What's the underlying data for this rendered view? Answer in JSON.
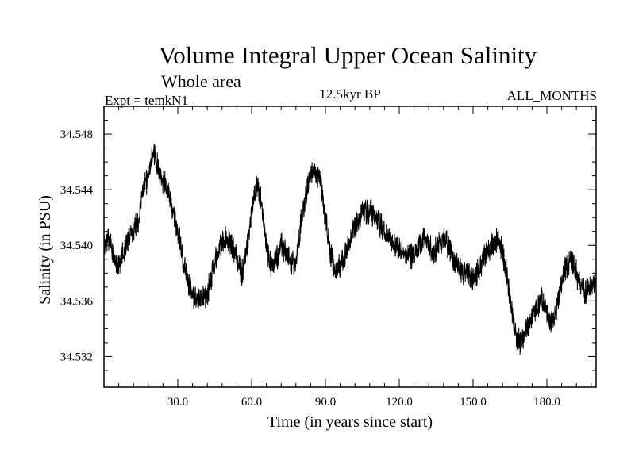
{
  "chart_data": {
    "type": "line",
    "title": "Volume Integral Upper Ocean Salinity",
    "subtitle": "Whole area",
    "experiment": "Expt = temkN1",
    "period": "12.5kyr BP",
    "months": "ALL_MONTHS",
    "xlabel": "Time (in years since start)",
    "ylabel": "Salinity (in PSU)",
    "xlim": [
      0,
      200
    ],
    "ylim": [
      34.5298,
      34.55
    ],
    "xticks": [
      30,
      60,
      90,
      120,
      150,
      180
    ],
    "xtick_labels": [
      "30.0",
      "60.0",
      "90.0",
      "120.0",
      "150.0",
      "180.0"
    ],
    "yticks": [
      34.532,
      34.536,
      34.54,
      34.544,
      34.548
    ],
    "ytick_labels": [
      "34.532",
      "34.536",
      "34.540",
      "34.544",
      "34.548"
    ],
    "grid": false,
    "series": [
      {
        "name": "salinity",
        "noise_amplitude": 0.0011,
        "x": [
          0,
          2,
          4,
          6,
          8,
          10,
          12,
          14,
          16,
          18,
          20,
          22,
          24,
          26,
          28,
          30,
          32,
          34,
          36,
          38,
          40,
          42,
          44,
          46,
          48,
          50,
          52,
          54,
          56,
          58,
          60,
          62,
          64,
          66,
          68,
          70,
          72,
          74,
          76,
          78,
          80,
          82,
          84,
          86,
          88,
          90,
          92,
          94,
          96,
          98,
          100,
          102,
          104,
          106,
          108,
          110,
          112,
          114,
          116,
          118,
          120,
          122,
          124,
          126,
          128,
          130,
          132,
          134,
          136,
          138,
          140,
          142,
          144,
          146,
          148,
          150,
          152,
          154,
          156,
          158,
          160,
          162,
          164,
          166,
          168,
          170,
          172,
          174,
          176,
          178,
          180,
          182,
          184,
          186,
          188,
          190,
          192,
          194,
          196,
          198,
          200
        ],
        "values": [
          34.54,
          34.5405,
          34.539,
          34.5385,
          34.5395,
          34.5405,
          34.541,
          34.542,
          34.544,
          34.545,
          34.5465,
          34.5455,
          34.5445,
          34.544,
          34.5425,
          34.541,
          34.539,
          34.5375,
          34.5365,
          34.536,
          34.5362,
          34.5365,
          34.538,
          34.5395,
          34.54,
          34.5405,
          34.54,
          34.539,
          34.538,
          34.5395,
          34.5425,
          34.5445,
          34.543,
          34.54,
          34.5385,
          34.539,
          34.54,
          34.5395,
          34.5385,
          34.539,
          34.5415,
          34.5435,
          34.545,
          34.5455,
          34.5445,
          34.542,
          34.5395,
          34.538,
          34.5385,
          34.5395,
          34.5405,
          34.5415,
          34.542,
          34.5425,
          34.5425,
          34.542,
          34.5415,
          34.541,
          34.5405,
          34.54,
          34.5398,
          34.5395,
          34.539,
          34.5395,
          34.54,
          34.5405,
          34.54,
          34.5395,
          34.54,
          34.5405,
          34.54,
          34.539,
          34.5385,
          34.538,
          34.538,
          34.5375,
          34.538,
          34.539,
          34.5395,
          34.54,
          34.5405,
          34.5395,
          34.5375,
          34.535,
          34.533,
          34.533,
          34.534,
          34.535,
          34.5355,
          34.536,
          34.535,
          34.5345,
          34.5355,
          34.5375,
          34.5385,
          34.539,
          34.538,
          34.537,
          34.5365,
          34.537,
          34.5375
        ]
      }
    ]
  }
}
